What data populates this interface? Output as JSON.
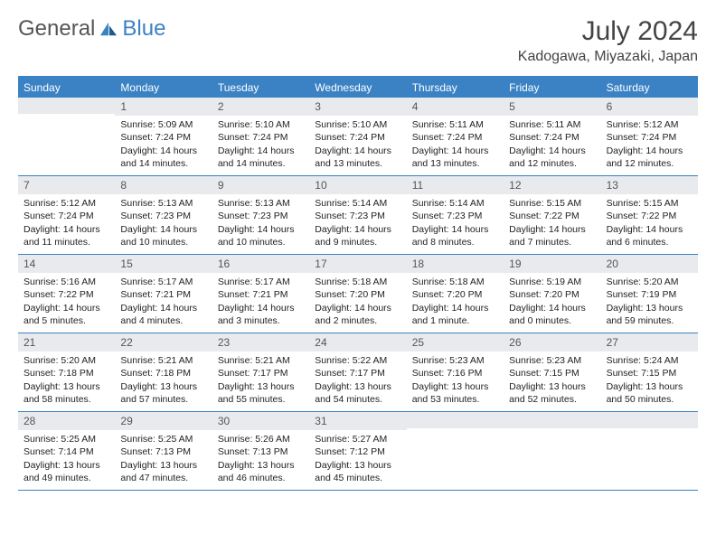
{
  "logo": {
    "part1": "General",
    "part2": "Blue"
  },
  "title": "July 2024",
  "location": "Kadogawa, Miyazaki, Japan",
  "colors": {
    "header_bg": "#3b82c4",
    "daynum_bg": "#e8eaed",
    "text": "#222222",
    "muted": "#555555",
    "rule": "#3b82c4"
  },
  "weekdays": [
    "Sunday",
    "Monday",
    "Tuesday",
    "Wednesday",
    "Thursday",
    "Friday",
    "Saturday"
  ],
  "labels": {
    "sunrise": "Sunrise:",
    "sunset": "Sunset:",
    "daylight": "Daylight:"
  },
  "weeks": [
    [
      null,
      {
        "n": "1",
        "sunrise": "5:09 AM",
        "sunset": "7:24 PM",
        "daylight": "14 hours and 14 minutes."
      },
      {
        "n": "2",
        "sunrise": "5:10 AM",
        "sunset": "7:24 PM",
        "daylight": "14 hours and 14 minutes."
      },
      {
        "n": "3",
        "sunrise": "5:10 AM",
        "sunset": "7:24 PM",
        "daylight": "14 hours and 13 minutes."
      },
      {
        "n": "4",
        "sunrise": "5:11 AM",
        "sunset": "7:24 PM",
        "daylight": "14 hours and 13 minutes."
      },
      {
        "n": "5",
        "sunrise": "5:11 AM",
        "sunset": "7:24 PM",
        "daylight": "14 hours and 12 minutes."
      },
      {
        "n": "6",
        "sunrise": "5:12 AM",
        "sunset": "7:24 PM",
        "daylight": "14 hours and 12 minutes."
      }
    ],
    [
      {
        "n": "7",
        "sunrise": "5:12 AM",
        "sunset": "7:24 PM",
        "daylight": "14 hours and 11 minutes."
      },
      {
        "n": "8",
        "sunrise": "5:13 AM",
        "sunset": "7:23 PM",
        "daylight": "14 hours and 10 minutes."
      },
      {
        "n": "9",
        "sunrise": "5:13 AM",
        "sunset": "7:23 PM",
        "daylight": "14 hours and 10 minutes."
      },
      {
        "n": "10",
        "sunrise": "5:14 AM",
        "sunset": "7:23 PM",
        "daylight": "14 hours and 9 minutes."
      },
      {
        "n": "11",
        "sunrise": "5:14 AM",
        "sunset": "7:23 PM",
        "daylight": "14 hours and 8 minutes."
      },
      {
        "n": "12",
        "sunrise": "5:15 AM",
        "sunset": "7:22 PM",
        "daylight": "14 hours and 7 minutes."
      },
      {
        "n": "13",
        "sunrise": "5:15 AM",
        "sunset": "7:22 PM",
        "daylight": "14 hours and 6 minutes."
      }
    ],
    [
      {
        "n": "14",
        "sunrise": "5:16 AM",
        "sunset": "7:22 PM",
        "daylight": "14 hours and 5 minutes."
      },
      {
        "n": "15",
        "sunrise": "5:17 AM",
        "sunset": "7:21 PM",
        "daylight": "14 hours and 4 minutes."
      },
      {
        "n": "16",
        "sunrise": "5:17 AM",
        "sunset": "7:21 PM",
        "daylight": "14 hours and 3 minutes."
      },
      {
        "n": "17",
        "sunrise": "5:18 AM",
        "sunset": "7:20 PM",
        "daylight": "14 hours and 2 minutes."
      },
      {
        "n": "18",
        "sunrise": "5:18 AM",
        "sunset": "7:20 PM",
        "daylight": "14 hours and 1 minute."
      },
      {
        "n": "19",
        "sunrise": "5:19 AM",
        "sunset": "7:20 PM",
        "daylight": "14 hours and 0 minutes."
      },
      {
        "n": "20",
        "sunrise": "5:20 AM",
        "sunset": "7:19 PM",
        "daylight": "13 hours and 59 minutes."
      }
    ],
    [
      {
        "n": "21",
        "sunrise": "5:20 AM",
        "sunset": "7:18 PM",
        "daylight": "13 hours and 58 minutes."
      },
      {
        "n": "22",
        "sunrise": "5:21 AM",
        "sunset": "7:18 PM",
        "daylight": "13 hours and 57 minutes."
      },
      {
        "n": "23",
        "sunrise": "5:21 AM",
        "sunset": "7:17 PM",
        "daylight": "13 hours and 55 minutes."
      },
      {
        "n": "24",
        "sunrise": "5:22 AM",
        "sunset": "7:17 PM",
        "daylight": "13 hours and 54 minutes."
      },
      {
        "n": "25",
        "sunrise": "5:23 AM",
        "sunset": "7:16 PM",
        "daylight": "13 hours and 53 minutes."
      },
      {
        "n": "26",
        "sunrise": "5:23 AM",
        "sunset": "7:15 PM",
        "daylight": "13 hours and 52 minutes."
      },
      {
        "n": "27",
        "sunrise": "5:24 AM",
        "sunset": "7:15 PM",
        "daylight": "13 hours and 50 minutes."
      }
    ],
    [
      {
        "n": "28",
        "sunrise": "5:25 AM",
        "sunset": "7:14 PM",
        "daylight": "13 hours and 49 minutes."
      },
      {
        "n": "29",
        "sunrise": "5:25 AM",
        "sunset": "7:13 PM",
        "daylight": "13 hours and 47 minutes."
      },
      {
        "n": "30",
        "sunrise": "5:26 AM",
        "sunset": "7:13 PM",
        "daylight": "13 hours and 46 minutes."
      },
      {
        "n": "31",
        "sunrise": "5:27 AM",
        "sunset": "7:12 PM",
        "daylight": "13 hours and 45 minutes."
      },
      null,
      null,
      null
    ]
  ]
}
